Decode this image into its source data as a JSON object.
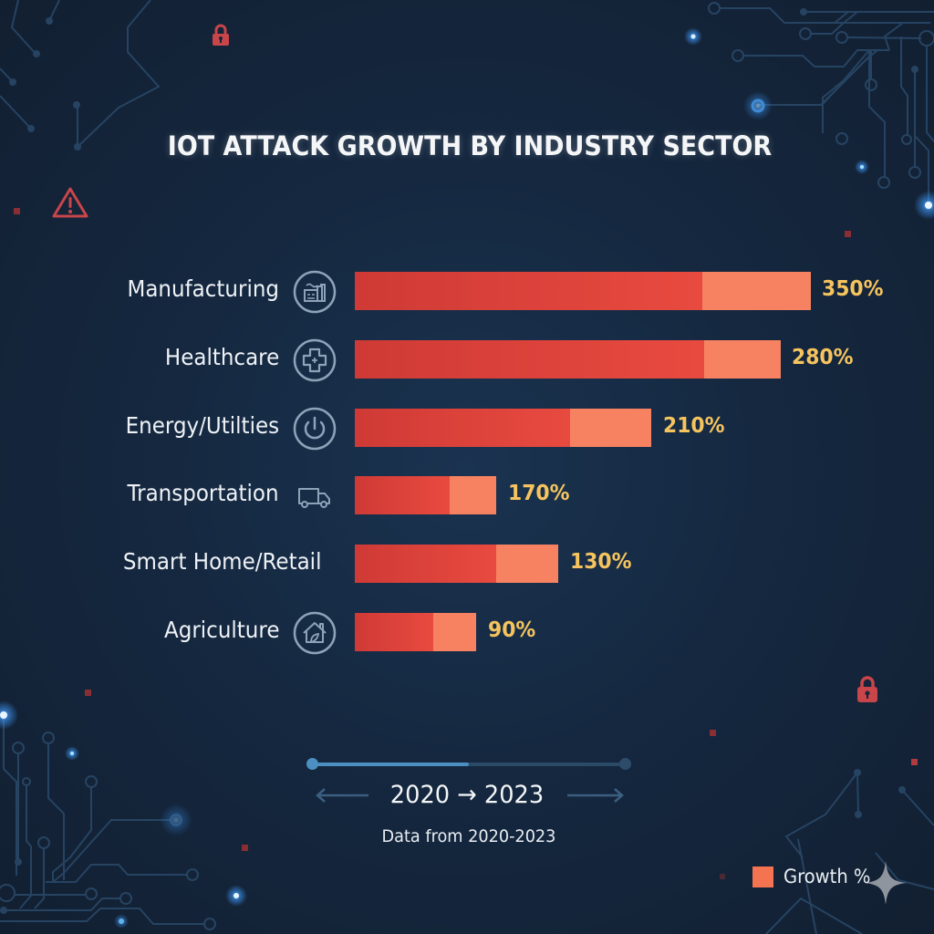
{
  "chart_data": {
    "type": "bar",
    "orientation": "horizontal",
    "stacked": true,
    "title": "IOT ATTACK GROWTH BY INDUSTRY SECTOR",
    "xlabel": "",
    "ylabel": "",
    "grid": false,
    "categories": [
      "Manufacturing",
      "Healthcare",
      "Energy/Utilties",
      "Transportation",
      "Smart Home/Retail",
      "Agriculture"
    ],
    "values": [
      350,
      280,
      210,
      170,
      130,
      90
    ],
    "value_labels": [
      "350%",
      "280%",
      "210%",
      "170%",
      "130%",
      "90%"
    ],
    "bar_fill_fraction": [
      1.0,
      0.934,
      0.651,
      0.311,
      0.447,
      0.267
    ],
    "growth_segment_fraction": [
      0.238,
      0.179,
      0.275,
      0.333,
      0.306,
      0.355
    ],
    "icons": [
      "factory-icon",
      "medical-cross-icon",
      "power-icon",
      "truck-icon",
      "",
      "home-leaf-icon"
    ],
    "legend": [
      {
        "label": "Growth %",
        "color": "#f47350"
      }
    ],
    "legend_position": "bottom-right",
    "colors": {
      "base": "#d93f38",
      "growth": "#f78262",
      "value_text": "#f6c45e"
    }
  },
  "timeline": {
    "range_start": "2020",
    "range_end": "2023",
    "arrow": "→",
    "progress": 0.5,
    "caption": "Data from 2020-2023"
  },
  "decor": {
    "accent_blue": "#4da6ff",
    "alert_red": "#c8454a",
    "icons": [
      "lock-icon",
      "warning-icon",
      "lock-icon",
      "sparkle-icon"
    ]
  }
}
